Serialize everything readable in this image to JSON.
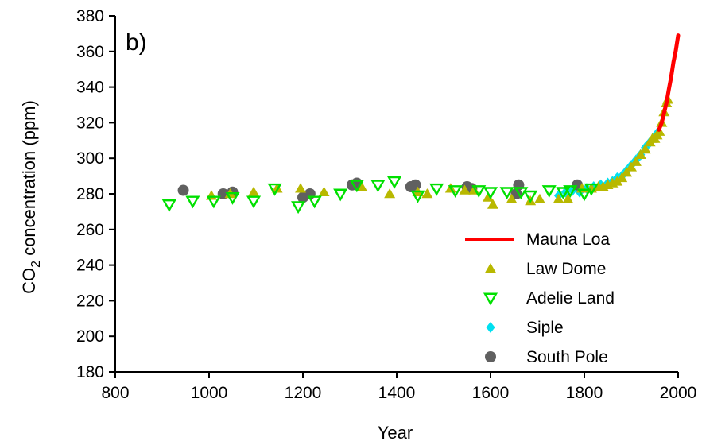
{
  "chart_data": {
    "type": "scatter",
    "panel_label": "b)",
    "xlabel": "Year",
    "ylabel_main": "CO",
    "ylabel_sub": "2",
    "ylabel_rest": " concentration (ppm)",
    "xlim": [
      800,
      2000
    ],
    "ylim": [
      180,
      380
    ],
    "xticks": [
      800,
      1000,
      1200,
      1400,
      1600,
      1800,
      2000
    ],
    "yticks": [
      180,
      200,
      220,
      240,
      260,
      280,
      300,
      320,
      340,
      360,
      380
    ],
    "grid": false,
    "legend_position": "bottom-right",
    "series": [
      {
        "name": "Mauna Loa",
        "marker": "line",
        "color": "#ff0000",
        "points": [
          [
            1959,
            316
          ],
          [
            1965,
            320
          ],
          [
            1970,
            325.5
          ],
          [
            1975,
            331
          ],
          [
            1980,
            338.5
          ],
          [
            1985,
            345.5
          ],
          [
            1990,
            354
          ],
          [
            1995,
            360.5
          ],
          [
            2000,
            369
          ]
        ]
      },
      {
        "name": "Law Dome",
        "marker": "triangle-up",
        "color": "#b8b800",
        "points": [
          [
            1005,
            279
          ],
          [
            1045,
            280
          ],
          [
            1095,
            281
          ],
          [
            1145,
            283
          ],
          [
            1195,
            283
          ],
          [
            1245,
            281
          ],
          [
            1325,
            284
          ],
          [
            1385,
            280
          ],
          [
            1445,
            281
          ],
          [
            1465,
            280
          ],
          [
            1515,
            283
          ],
          [
            1545,
            282
          ],
          [
            1565,
            282
          ],
          [
            1595,
            278
          ],
          [
            1605,
            274
          ],
          [
            1645,
            277
          ],
          [
            1685,
            276
          ],
          [
            1705,
            277
          ],
          [
            1745,
            277
          ],
          [
            1765,
            277
          ],
          [
            1795,
            283
          ],
          [
            1815,
            283
          ],
          [
            1830,
            284
          ],
          [
            1840,
            284
          ],
          [
            1850,
            285
          ],
          [
            1860,
            286
          ],
          [
            1870,
            287
          ],
          [
            1880,
            289
          ],
          [
            1890,
            292
          ],
          [
            1900,
            295
          ],
          [
            1910,
            298
          ],
          [
            1920,
            302
          ],
          [
            1930,
            305
          ],
          [
            1940,
            309
          ],
          [
            1945,
            311
          ],
          [
            1950,
            311
          ],
          [
            1955,
            313
          ],
          [
            1960,
            315
          ],
          [
            1965,
            320
          ],
          [
            1970,
            326
          ],
          [
            1975,
            331
          ],
          [
            1978,
            333
          ]
        ]
      },
      {
        "name": "Adelie Land",
        "marker": "triangle-down-open",
        "color": "#00e000",
        "points": [
          [
            915,
            274
          ],
          [
            965,
            276
          ],
          [
            1010,
            276
          ],
          [
            1050,
            278
          ],
          [
            1095,
            276
          ],
          [
            1140,
            283
          ],
          [
            1190,
            273
          ],
          [
            1225,
            276
          ],
          [
            1280,
            280
          ],
          [
            1315,
            285
          ],
          [
            1360,
            285
          ],
          [
            1395,
            287
          ],
          [
            1445,
            279
          ],
          [
            1485,
            283
          ],
          [
            1525,
            282
          ],
          [
            1575,
            282
          ],
          [
            1600,
            281
          ],
          [
            1635,
            281
          ],
          [
            1665,
            281
          ],
          [
            1685,
            279
          ],
          [
            1725,
            282
          ],
          [
            1755,
            281
          ],
          [
            1770,
            282
          ],
          [
            1800,
            280
          ],
          [
            1815,
            283
          ]
        ]
      },
      {
        "name": "Siple",
        "marker": "diamond",
        "color": "#00e0f0",
        "points": [
          [
            1745,
            279
          ],
          [
            1760,
            281
          ],
          [
            1775,
            282
          ],
          [
            1790,
            281
          ],
          [
            1805,
            283
          ],
          [
            1820,
            284
          ],
          [
            1835,
            285
          ],
          [
            1850,
            286
          ],
          [
            1860,
            287
          ],
          [
            1870,
            289
          ],
          [
            1880,
            290
          ],
          [
            1890,
            293
          ],
          [
            1900,
            296
          ],
          [
            1910,
            299
          ],
          [
            1920,
            302
          ],
          [
            1930,
            306
          ],
          [
            1940,
            309
          ],
          [
            1950,
            312
          ],
          [
            1955,
            314
          ]
        ]
      },
      {
        "name": "South Pole",
        "marker": "circle",
        "color": "#606060",
        "points": [
          [
            945,
            282
          ],
          [
            1030,
            280
          ],
          [
            1050,
            281
          ],
          [
            1200,
            278
          ],
          [
            1215,
            280
          ],
          [
            1305,
            285
          ],
          [
            1315,
            286
          ],
          [
            1430,
            284
          ],
          [
            1440,
            285
          ],
          [
            1550,
            284
          ],
          [
            1560,
            283
          ],
          [
            1660,
            285
          ],
          [
            1655,
            280
          ],
          [
            1785,
            285
          ]
        ]
      }
    ]
  }
}
